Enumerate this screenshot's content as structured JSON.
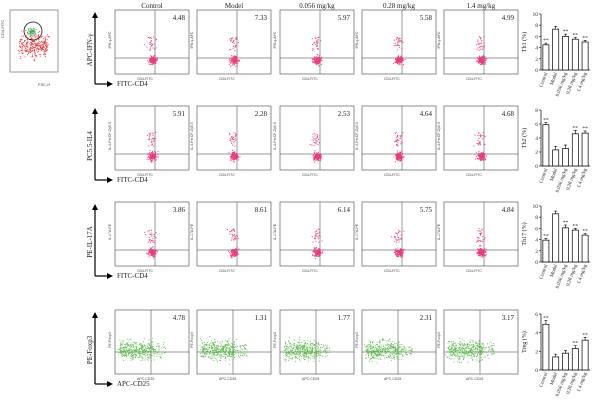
{
  "columns": [
    "Control",
    "Model",
    "0.056 mg/kg",
    "0.28 mg/kg",
    "1.4 mg/kg"
  ],
  "gating": {
    "x_label": "FSC-H",
    "y_label": "CD4-FITC"
  },
  "rows": [
    {
      "y_label": "APC-IFN-γ",
      "x_label": "FITC-CD4",
      "inner_x": "CD4-FITC",
      "inner_y": "IFN-γ-APC",
      "type": "pink",
      "values": [
        "4.48",
        "7.33",
        "5.97",
        "5.58",
        "4.99"
      ],
      "bar_ylabel": "Th1 (%)"
    },
    {
      "y_label": "PC5.5-IL4",
      "x_label": "FITC-CD4",
      "inner_x": "CD4-FITC",
      "inner_y": "IL-4-PerCP-Cy5.5",
      "type": "pink",
      "values": [
        "5.91",
        "2.28",
        "2.53",
        "4.64",
        "4.68"
      ],
      "bar_ylabel": "Th2 (%)"
    },
    {
      "y_label": "PE-IL-17A",
      "x_label": "FITC-CD4",
      "inner_x": "CD4-FITC",
      "inner_y": "IL-17A-PE",
      "type": "pink",
      "values": [
        "3.86",
        "8.61",
        "6.14",
        "5.75",
        "4.84"
      ],
      "bar_ylabel": "Th17 (%)"
    },
    {
      "y_label": "PE-Foxp3",
      "x_label": "APC-CD25",
      "inner_x": "APC-CD25",
      "inner_y": "PE-Foxp3",
      "type": "green",
      "values": [
        "4.78",
        "1.31",
        "1.77",
        "2.31",
        "3.17"
      ],
      "bar_ylabel": "Treg (%)"
    }
  ],
  "chart_data": [
    {
      "type": "bar",
      "categories": [
        "Control",
        "Model",
        "0.056 mg/kg",
        "0.28 mg/kg",
        "1.4 mg/kg"
      ],
      "values": [
        4.5,
        7.3,
        6.0,
        5.5,
        5.0
      ],
      "errors": [
        0.3,
        0.5,
        0.4,
        0.3,
        0.3
      ],
      "ylabel": "Th1 (%)",
      "ylim": [
        0,
        10
      ],
      "yticks": [
        "0",
        "2",
        "4",
        "6",
        "8",
        "10"
      ],
      "annotations": [
        "**",
        "",
        "**",
        "**",
        "**"
      ]
    },
    {
      "type": "bar",
      "categories": [
        "Control",
        "Model",
        "0.056 mg/kg",
        "0.28 mg/kg",
        "1.4 mg/kg"
      ],
      "values": [
        5.9,
        2.3,
        2.5,
        4.6,
        4.7
      ],
      "errors": [
        0.3,
        0.5,
        0.5,
        0.5,
        0.3
      ],
      "ylabel": "Th2 (%)",
      "ylim": [
        0,
        8
      ],
      "yticks": [
        "0",
        "2",
        "4",
        "6",
        "8"
      ],
      "annotations": [
        "**",
        "",
        "",
        "**",
        "**"
      ]
    },
    {
      "type": "bar",
      "categories": [
        "Control",
        "Model",
        "0.056 mg/kg",
        "0.28 mg/kg",
        "1.4 mg/kg"
      ],
      "values": [
        3.9,
        8.6,
        6.1,
        5.7,
        4.8
      ],
      "errors": [
        0.3,
        0.5,
        0.5,
        0.3,
        0.3
      ],
      "ylabel": "Th17 (%)",
      "ylim": [
        0,
        10
      ],
      "yticks": [
        "0",
        "2",
        "4",
        "6",
        "8",
        "10"
      ],
      "annotations": [
        "**",
        "",
        "**",
        "**",
        "**"
      ]
    },
    {
      "type": "bar",
      "categories": [
        "Control",
        "Model",
        "0.056 mg/kg",
        "0.28 mg/kg",
        "1.4 mg/kg"
      ],
      "values": [
        4.9,
        1.4,
        1.8,
        2.3,
        3.2
      ],
      "errors": [
        0.4,
        0.3,
        0.3,
        0.3,
        0.3
      ],
      "ylabel": "Treg (%)",
      "ylim": [
        0,
        6
      ],
      "yticks": [
        "0",
        "2",
        "4",
        "6"
      ],
      "annotations": [
        "**",
        "",
        "",
        "**",
        "**"
      ]
    }
  ]
}
